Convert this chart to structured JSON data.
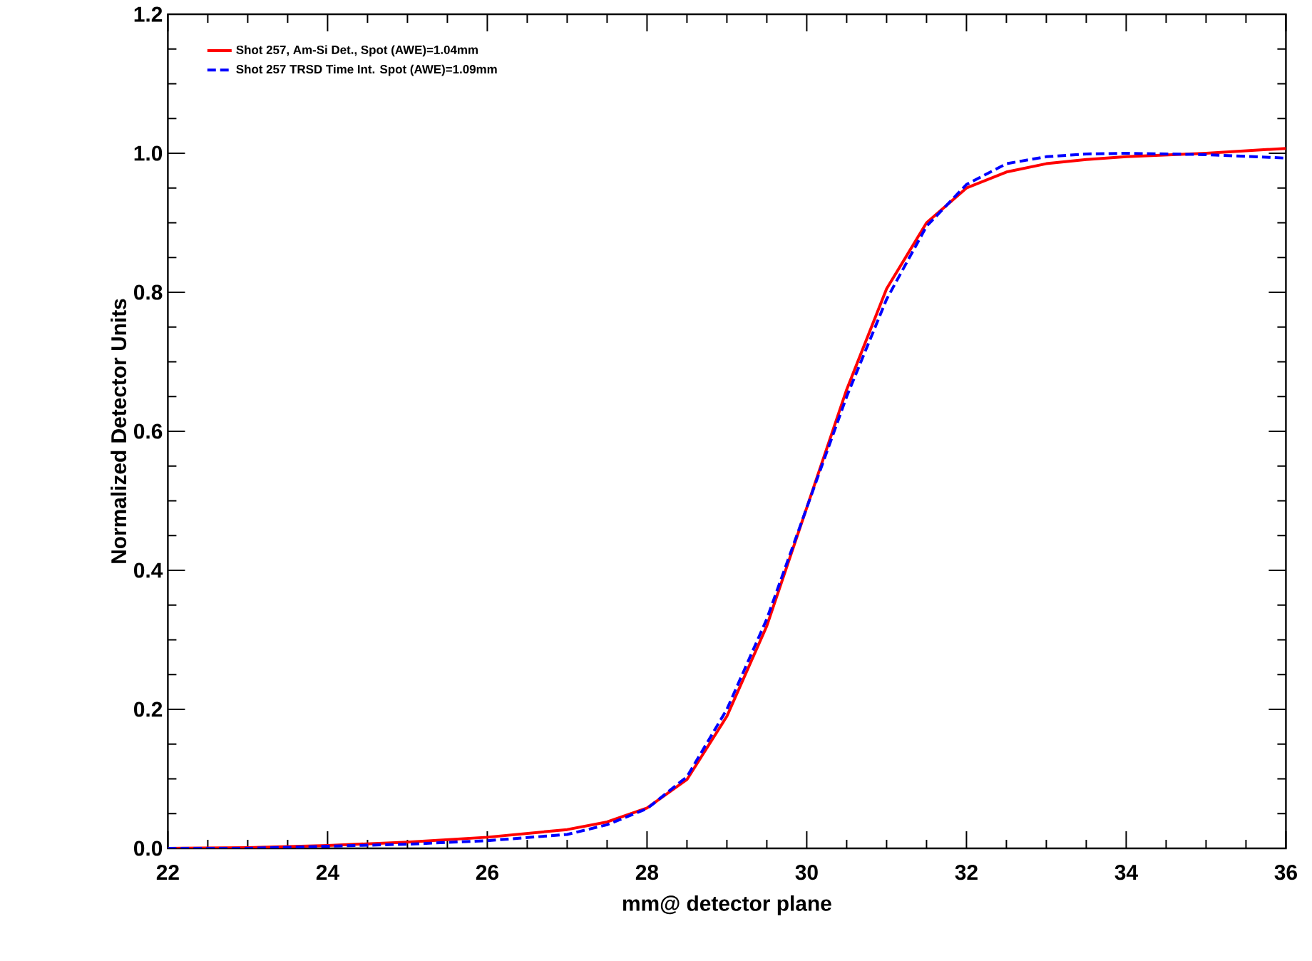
{
  "chart_data": {
    "type": "line",
    "xlabel": "mm@ detector plane",
    "ylabel": "Normalized Detector Units",
    "xlim": [
      22,
      36
    ],
    "ylim": [
      0,
      1.2
    ],
    "xticks": [
      22,
      24,
      26,
      28,
      30,
      32,
      34,
      36
    ],
    "yticks": [
      {
        "value": 0,
        "label": "0.0"
      },
      0.2,
      0.4,
      0.6,
      0.8,
      {
        "value": 1,
        "label": "1.0"
      },
      1.2
    ],
    "grid": false,
    "legend": "top left",
    "marker": "none",
    "series": [
      {
        "name": "Shot 257, Am-Si Det., Spot (AWE)=1.04mm",
        "color": "#ff0000",
        "line_style": "solid",
        "x": [
          22,
          23,
          24,
          25,
          26,
          27,
          27.5,
          28,
          28.5,
          29,
          29.5,
          30,
          30.5,
          31,
          31.5,
          32,
          32.5,
          33,
          33.5,
          34,
          35,
          36
        ],
        "values": [
          0,
          0.001,
          0.004,
          0.009,
          0.016,
          0.027,
          0.038,
          0.058,
          0.099,
          0.19,
          0.32,
          0.49,
          0.66,
          0.805,
          0.9,
          0.95,
          0.973,
          0.985,
          0.991,
          0.995,
          1.0,
          1.007
        ]
      },
      {
        "name": "Shot 257 TRSD Time Int. Spot (AWE)=1.09mm",
        "color": "#0000ff",
        "line_style": "dashed",
        "x": [
          22,
          23,
          24,
          25,
          26,
          27,
          27.5,
          28,
          28.5,
          29,
          29.5,
          30,
          30.5,
          31,
          31.5,
          32,
          32.5,
          33,
          33.5,
          34,
          35,
          36
        ],
        "values": [
          0,
          0,
          0.003,
          0.006,
          0.011,
          0.02,
          0.034,
          0.057,
          0.103,
          0.2,
          0.33,
          0.49,
          0.65,
          0.79,
          0.895,
          0.955,
          0.985,
          0.995,
          0.999,
          1.0,
          0.998,
          0.993
        ]
      }
    ]
  }
}
